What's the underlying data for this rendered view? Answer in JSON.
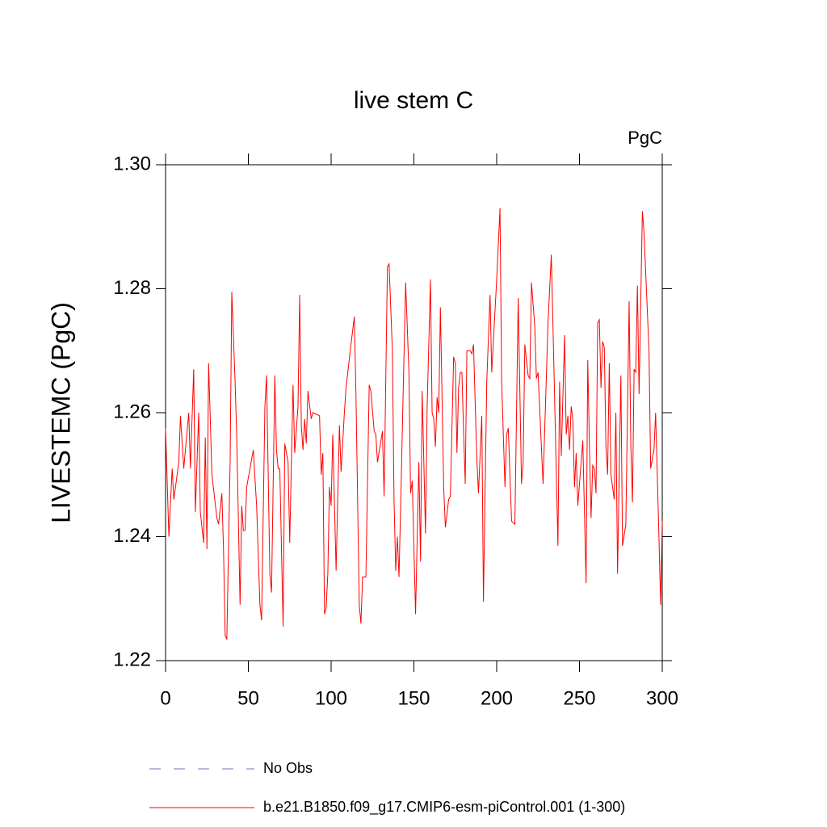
{
  "chart_data": {
    "type": "line",
    "title": "live stem C",
    "units": "PgC",
    "ylabel": "LIVESTEMC  (PgC)",
    "xlim": [
      0,
      300
    ],
    "xticks": [
      0,
      50,
      100,
      150,
      200,
      250,
      300
    ],
    "ylim": [
      1.22,
      1.3
    ],
    "yticks": [
      {
        "value": 1.22,
        "label": "1.22"
      },
      {
        "value": 1.24,
        "label": "1.24"
      },
      {
        "value": 1.26,
        "label": "1.26"
      },
      {
        "value": 1.28,
        "label": "1.28"
      },
      {
        "value": 1.3,
        "label": "1.30"
      }
    ],
    "legend_entries": [
      {
        "name": "No Obs",
        "color": "#7a6fc0",
        "dashed": true
      }
    ],
    "x": [
      0,
      2,
      4,
      5,
      8,
      9,
      11,
      14,
      15,
      17,
      18,
      20,
      21,
      23,
      24,
      25,
      26,
      28,
      31,
      32,
      34,
      35,
      36,
      37,
      39,
      40,
      42,
      43,
      45,
      46,
      47,
      48,
      49,
      53,
      55,
      57,
      58,
      60,
      61,
      63,
      64,
      66,
      67,
      68,
      69,
      71,
      72,
      74,
      75,
      77,
      78,
      80,
      81,
      82,
      83,
      84,
      85,
      86,
      88,
      89,
      93,
      94,
      95,
      96,
      97,
      98,
      99,
      100,
      101,
      103,
      105,
      106,
      108,
      109,
      112,
      114,
      115,
      117,
      118,
      119,
      121,
      123,
      124,
      126,
      127,
      128,
      131,
      132,
      134,
      135,
      137,
      138,
      139,
      140,
      141,
      142,
      145,
      147,
      148,
      149,
      151,
      153,
      154,
      155,
      157,
      158,
      160,
      161,
      162,
      163,
      164,
      165,
      166,
      168,
      169,
      171,
      172,
      174,
      175,
      176,
      177,
      178,
      179,
      180,
      181,
      182,
      184,
      185,
      186,
      188,
      189,
      191,
      192,
      194,
      196,
      197,
      200,
      202,
      203,
      205,
      206,
      207,
      209,
      211,
      213,
      215,
      216,
      217,
      219,
      220,
      221,
      223,
      224,
      225,
      228,
      231,
      233,
      234,
      237,
      238,
      239,
      241,
      242,
      243,
      244,
      245,
      246,
      247,
      248,
      249,
      252,
      254,
      255,
      256,
      257,
      258,
      259,
      260,
      261,
      262,
      263,
      264,
      265,
      266,
      267,
      268,
      269,
      271,
      272,
      273,
      275,
      276,
      278,
      280,
      281,
      282,
      283,
      284,
      285,
      286,
      288,
      289,
      292,
      293,
      295,
      296,
      298,
      299,
      300
    ],
    "series": [
      {
        "name": "b.e21.B1850.f09_g17.CMIP6-esm-piControl.001 (1-300)",
        "color": "#ff0000",
        "values": [
          1.2575,
          1.24,
          1.251,
          1.246,
          1.252,
          1.2595,
          1.251,
          1.26,
          1.251,
          1.267,
          1.244,
          1.26,
          1.244,
          1.239,
          1.256,
          1.238,
          1.268,
          1.25,
          1.243,
          1.242,
          1.247,
          1.238,
          1.224,
          1.2235,
          1.252,
          1.2795,
          1.265,
          1.256,
          1.229,
          1.245,
          1.241,
          1.241,
          1.248,
          1.254,
          1.245,
          1.229,
          1.2265,
          1.261,
          1.266,
          1.234,
          1.231,
          1.266,
          1.254,
          1.251,
          1.251,
          1.2255,
          1.255,
          1.252,
          1.239,
          1.2645,
          1.2535,
          1.261,
          1.279,
          1.258,
          1.254,
          1.259,
          1.255,
          1.2635,
          1.259,
          1.26,
          1.2595,
          1.25,
          1.2535,
          1.2275,
          1.2285,
          1.234,
          1.248,
          1.245,
          1.2565,
          1.2345,
          1.258,
          1.2505,
          1.26,
          1.264,
          1.271,
          1.2755,
          1.263,
          1.229,
          1.226,
          1.2335,
          1.2335,
          1.2645,
          1.2635,
          1.257,
          1.2565,
          1.252,
          1.257,
          1.2465,
          1.2835,
          1.284,
          1.27,
          1.246,
          1.2345,
          1.24,
          1.2335,
          1.245,
          1.281,
          1.2665,
          1.247,
          1.249,
          1.2275,
          1.252,
          1.236,
          1.2635,
          1.2405,
          1.261,
          1.2815,
          1.26,
          1.259,
          1.2545,
          1.2625,
          1.26,
          1.277,
          1.248,
          1.2415,
          1.246,
          1.2465,
          1.269,
          1.268,
          1.2535,
          1.264,
          1.2665,
          1.2665,
          1.257,
          1.2485,
          1.27,
          1.27,
          1.2695,
          1.271,
          1.2525,
          1.247,
          1.2595,
          1.2295,
          1.265,
          1.279,
          1.2665,
          1.2815,
          1.293,
          1.265,
          1.248,
          1.2565,
          1.2575,
          1.2425,
          1.242,
          1.2785,
          1.2485,
          1.252,
          1.271,
          1.266,
          1.2655,
          1.281,
          1.274,
          1.2655,
          1.2665,
          1.2485,
          1.2745,
          1.2855,
          1.274,
          1.2385,
          1.265,
          1.253,
          1.2725,
          1.2565,
          1.2595,
          1.254,
          1.261,
          1.259,
          1.248,
          1.2535,
          1.245,
          1.2555,
          1.2325,
          1.2685,
          1.255,
          1.243,
          1.2515,
          1.251,
          1.247,
          1.2745,
          1.275,
          1.264,
          1.2715,
          1.2705,
          1.2545,
          1.25,
          1.268,
          1.25,
          1.246,
          1.26,
          1.234,
          1.266,
          1.2385,
          1.242,
          1.278,
          1.255,
          1.2455,
          1.267,
          1.2665,
          1.2805,
          1.263,
          1.2925,
          1.289,
          1.27,
          1.251,
          1.254,
          1.26,
          1.24,
          1.229,
          1.2425
        ]
      }
    ]
  }
}
